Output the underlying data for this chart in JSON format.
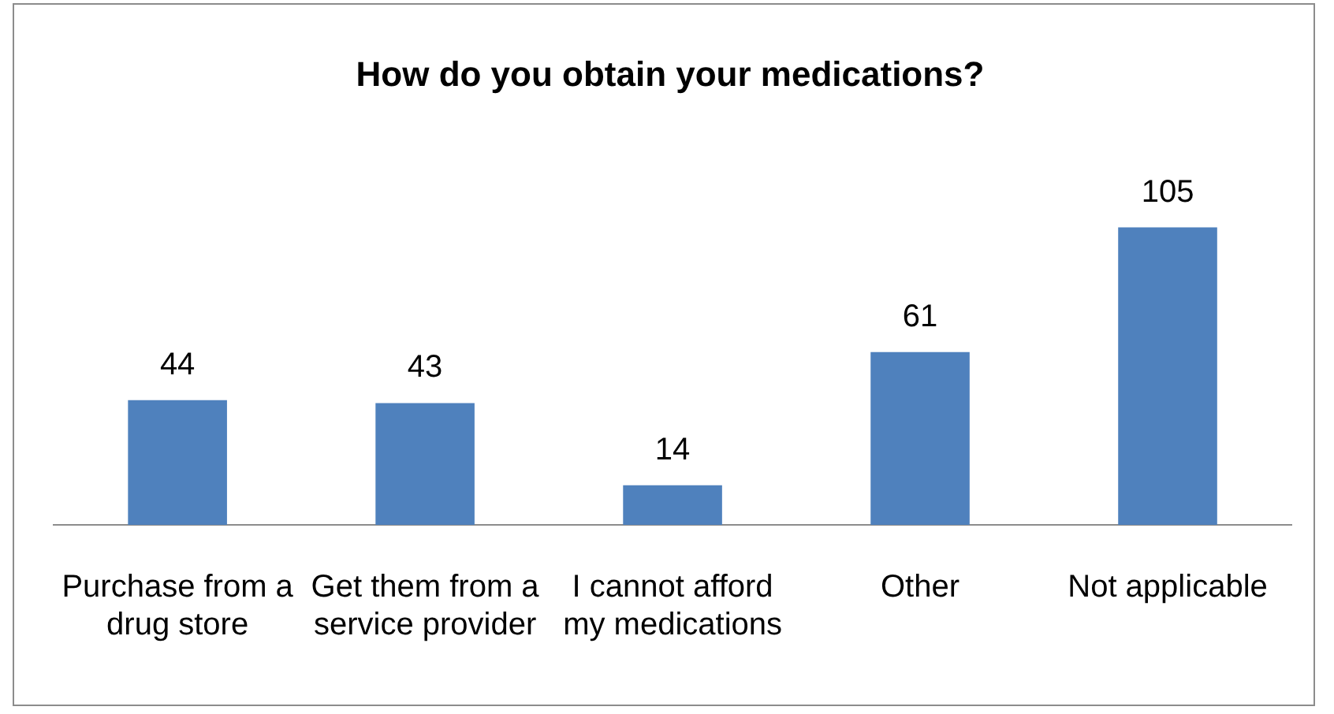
{
  "chart_data": {
    "type": "bar",
    "title": "How do you obtain your medications?",
    "categories": [
      "Purchase from a drug store",
      "Get them from a service provider",
      "I cannot afford my medications",
      "Other",
      "Not applicable"
    ],
    "values": [
      44,
      43,
      14,
      61,
      105
    ],
    "color": "#4f81bd",
    "data_labels": true,
    "grid": false,
    "legend": false
  }
}
